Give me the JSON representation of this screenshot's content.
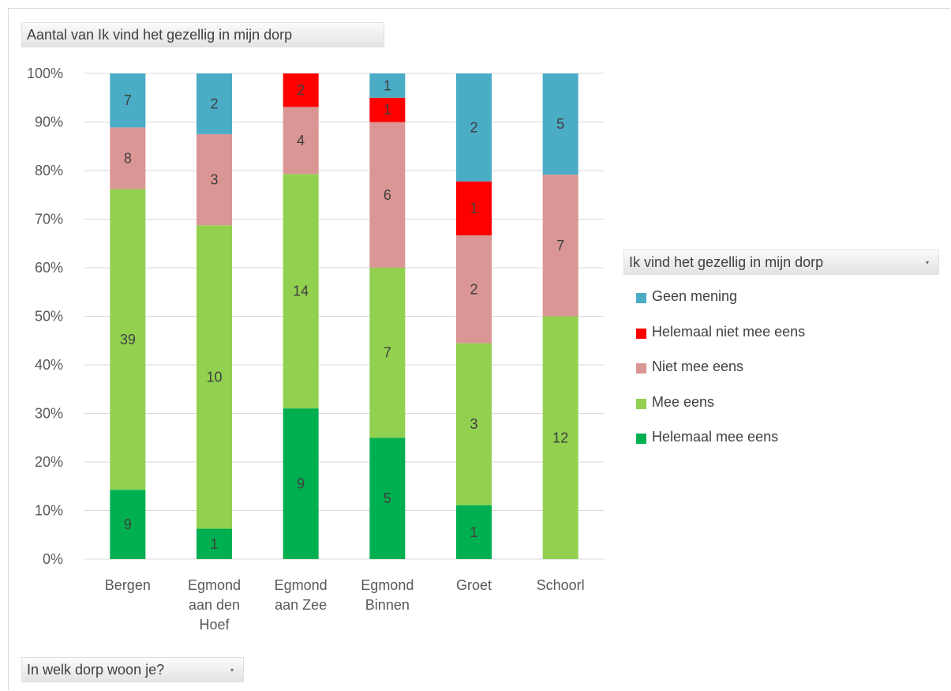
{
  "pivot": {
    "value_field_label": "Aantal van Ik vind het gezellig in mijn dorp",
    "axis_field_label": "In welk dorp woon je?",
    "legend_field_label": "Ik vind het gezellig in mijn dorp"
  },
  "chart_data": {
    "type": "bar",
    "stacked": "percent",
    "title": "",
    "xlabel": "",
    "ylabel": "",
    "ylim": [
      0,
      100
    ],
    "y_ticks": [
      "0%",
      "10%",
      "20%",
      "30%",
      "40%",
      "50%",
      "60%",
      "70%",
      "80%",
      "90%",
      "100%"
    ],
    "grid": true,
    "legend_position": "right",
    "categories": [
      [
        "Bergen"
      ],
      [
        "Egmond",
        "aan den",
        "Hoef"
      ],
      [
        "Egmond",
        "aan Zee"
      ],
      [
        "Egmond",
        "Binnen"
      ],
      [
        "Groet"
      ],
      [
        "Schoorl"
      ]
    ],
    "series": [
      {
        "name": "Helemaal mee eens",
        "color": "#00b050",
        "values": [
          9,
          1,
          9,
          5,
          1,
          0
        ]
      },
      {
        "name": "Mee eens",
        "color": "#92d050",
        "values": [
          39,
          10,
          14,
          7,
          3,
          12
        ]
      },
      {
        "name": "Niet mee eens",
        "color": "#da9694",
        "values": [
          8,
          3,
          4,
          6,
          2,
          7
        ]
      },
      {
        "name": "Helemaal niet mee eens",
        "color": "#ff0000",
        "values": [
          0,
          0,
          2,
          1,
          1,
          0
        ]
      },
      {
        "name": "Geen mening",
        "color": "#4bacc6",
        "values": [
          7,
          2,
          0,
          1,
          2,
          5
        ]
      }
    ],
    "legend_order": [
      "Geen mening",
      "Helemaal niet mee eens",
      "Niet mee eens",
      "Mee eens",
      "Helemaal mee eens"
    ]
  }
}
